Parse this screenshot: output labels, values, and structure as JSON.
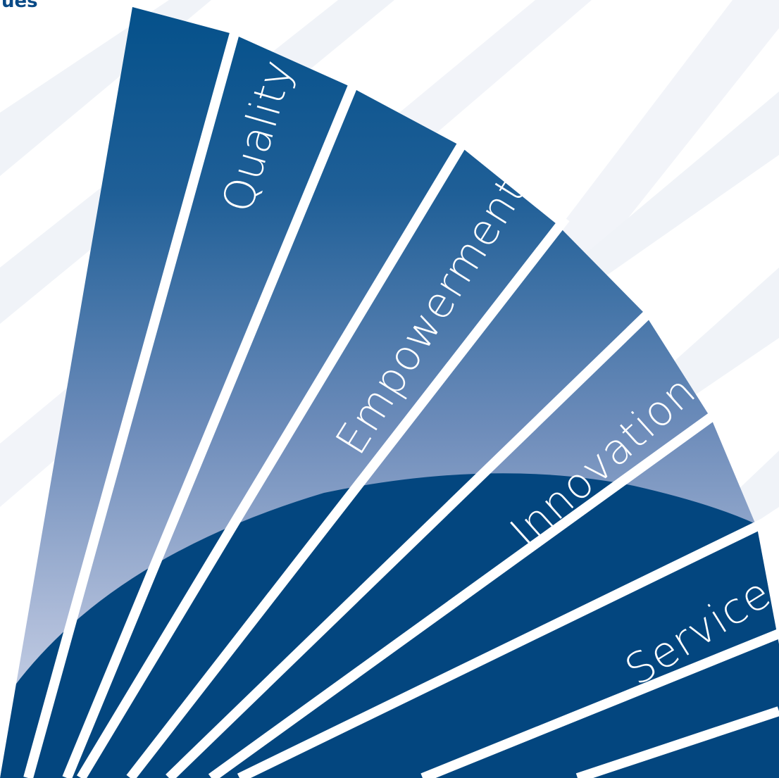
{
  "header_fragment": "ues",
  "rays": [
    {
      "label": "Quality"
    },
    {
      "label": "Empowerment"
    },
    {
      "label": "Innovation"
    },
    {
      "label": "Service"
    }
  ],
  "colors": {
    "background_stripe": "#eef1f7",
    "ray_top": "#03508a",
    "ray_bottom": "#c9d2e6",
    "disc": "#03467f",
    "text": "#ffffff"
  }
}
